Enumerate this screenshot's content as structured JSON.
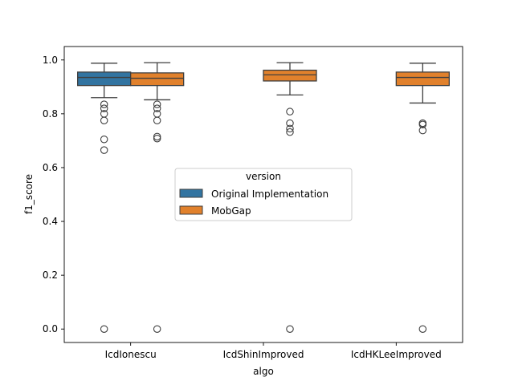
{
  "chart_data": {
    "type": "box",
    "title": "",
    "xlabel": "algo",
    "ylabel": "f1_score",
    "ylim": [
      -0.05,
      1.05
    ],
    "yticks": [
      0.0,
      0.2,
      0.4,
      0.6,
      0.8,
      1.0
    ],
    "ytick_labels": [
      "0.0",
      "0.2",
      "0.4",
      "0.6",
      "0.8",
      "1.0"
    ],
    "categories": [
      "IcdIonescu",
      "IcdShinImproved",
      "IcdHKLeeImproved"
    ],
    "legend": {
      "title": "version",
      "placement": "center"
    },
    "series": [
      {
        "name": "Original Implementation",
        "color": "#3274a1",
        "boxes": [
          {
            "category": "IcdIonescu",
            "whisker_low": 0.86,
            "q1": 0.905,
            "median": 0.935,
            "q3": 0.955,
            "whisker_high": 0.988,
            "outliers": [
              0.835,
              0.82,
              0.8,
              0.775,
              0.705,
              0.665,
              0.0
            ]
          }
        ]
      },
      {
        "name": "MobGap",
        "color": "#e1812c",
        "boxes": [
          {
            "category": "IcdIonescu",
            "whisker_low": 0.852,
            "q1": 0.905,
            "median": 0.932,
            "q3": 0.952,
            "whisker_high": 0.99,
            "outliers": [
              0.835,
              0.82,
              0.8,
              0.775,
              0.715,
              0.708,
              0.0
            ]
          },
          {
            "category": "IcdShinImproved",
            "whisker_low": 0.87,
            "q1": 0.922,
            "median": 0.945,
            "q3": 0.962,
            "whisker_high": 0.99,
            "outliers": [
              0.808,
              0.765,
              0.745,
              0.732,
              0.0
            ]
          },
          {
            "category": "IcdHKLeeImproved",
            "whisker_low": 0.84,
            "q1": 0.905,
            "median": 0.935,
            "q3": 0.955,
            "whisker_high": 0.988,
            "outliers": [
              0.765,
              0.76,
              0.738,
              0.0
            ]
          }
        ]
      }
    ]
  }
}
